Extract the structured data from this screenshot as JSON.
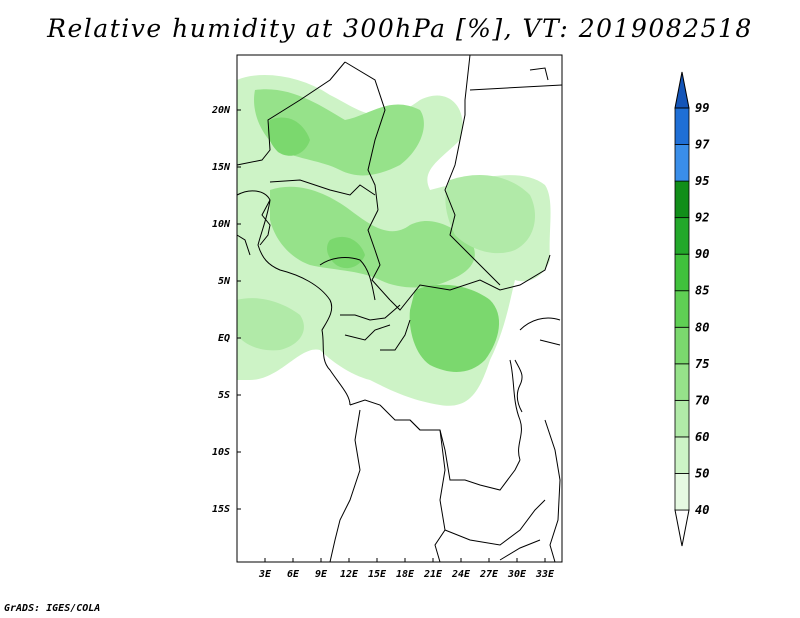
{
  "title": "Relative humidity at 300hPa [%], VT: 2019082518",
  "credit": "GrADS: IGES/COLA",
  "map": {
    "lat_ticks": [
      "20N",
      "15N",
      "10N",
      "5N",
      "EQ",
      "5S",
      "10S",
      "15S"
    ],
    "lon_ticks": [
      "3E",
      "6E",
      "9E",
      "12E",
      "15E",
      "18E",
      "21E",
      "24E",
      "27E",
      "30E",
      "33E"
    ]
  },
  "legend": {
    "labels": [
      "40",
      "50",
      "60",
      "70",
      "75",
      "80",
      "85",
      "90",
      "92",
      "95",
      "97",
      "99"
    ],
    "colors": [
      "#ffffff",
      "#e6f9e2",
      "#cdf3c6",
      "#b1eaa8",
      "#96e28a",
      "#7bd86e",
      "#5fcf54",
      "#40c13c",
      "#23a82a",
      "#118e19",
      "#3a8ee9",
      "#1f6fd6",
      "#1455b8"
    ]
  },
  "colors": {
    "land_border": "#000000",
    "humidity_light": "#c6f0bd",
    "humidity_mid": "#96e28a",
    "humidity_dark": "#6fd862"
  }
}
